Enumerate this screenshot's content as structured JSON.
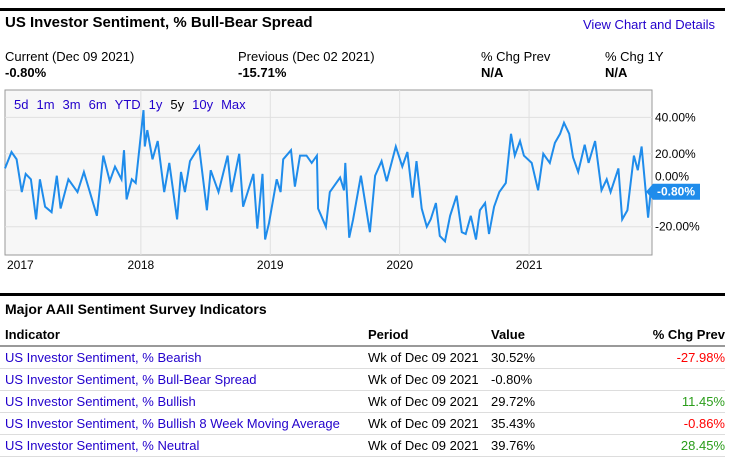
{
  "header": {
    "title": "US Investor Sentiment, % Bull-Bear Spread",
    "details_link": "View Chart and Details"
  },
  "stats": [
    {
      "label": "Current (Dec 09 2021)",
      "value": "-0.80%"
    },
    {
      "label": "Previous (Dec 02 2021)",
      "value": "-15.71%"
    },
    {
      "label": "% Chg Prev",
      "value": "N/A"
    },
    {
      "label": "% Chg 1Y",
      "value": "N/A"
    }
  ],
  "ranges": {
    "items": [
      "5d",
      "1m",
      "3m",
      "6m",
      "YTD",
      "1y",
      "5y",
      "10y",
      "Max"
    ],
    "selected": "5y"
  },
  "chart_data": {
    "type": "line",
    "xlabel": "",
    "ylabel": "",
    "x_ticks": [
      2017,
      2018,
      2019,
      2020,
      2021
    ],
    "x_tick_labels": [
      "2017",
      "2018",
      "2019",
      "2020",
      "2021"
    ],
    "y_ticks": [
      40,
      20,
      0,
      -20
    ],
    "y_tick_labels": [
      "40.00%",
      "20.00%",
      "0.00%",
      "-20.00%"
    ],
    "xlim": [
      2016.95,
      2021.95
    ],
    "ylim": [
      -35.5,
      55
    ],
    "grid": true,
    "line_color": "#1f8ceb",
    "last_value_label": "-0.80%",
    "x": [
      2016.95,
      2017.0,
      2017.04,
      2017.08,
      2017.11,
      2017.15,
      2017.19,
      2017.22,
      2017.26,
      2017.31,
      2017.35,
      2017.38,
      2017.44,
      2017.51,
      2017.56,
      2017.66,
      2017.71,
      2017.76,
      2017.8,
      2017.85,
      2017.87,
      2017.89,
      2017.93,
      2017.96,
      2018.02,
      2018.03,
      2018.05,
      2018.09,
      2018.13,
      2018.18,
      2018.22,
      2018.28,
      2018.31,
      2018.34,
      2018.38,
      2018.45,
      2018.51,
      2018.54,
      2018.6,
      2018.67,
      2018.7,
      2018.76,
      2018.79,
      2018.87,
      2018.9,
      2018.94,
      2018.96,
      2018.99,
      2019.05,
      2019.08,
      2019.1,
      2019.16,
      2019.19,
      2019.23,
      2019.28,
      2019.32,
      2019.36,
      2019.37,
      2019.43,
      2019.46,
      2019.54,
      2019.57,
      2019.58,
      2019.61,
      2019.64,
      2019.7,
      2019.77,
      2019.81,
      2019.86,
      2019.9,
      2019.97,
      2020.02,
      2020.06,
      2020.1,
      2020.13,
      2020.17,
      2020.21,
      2020.24,
      2020.28,
      2020.31,
      2020.35,
      2020.39,
      2020.44,
      2020.48,
      2020.51,
      2020.55,
      2020.59,
      2020.62,
      2020.66,
      2020.69,
      2020.73,
      2020.77,
      2020.82,
      2020.86,
      2020.89,
      2020.93,
      2020.96,
      2021.02,
      2021.07,
      2021.11,
      2021.16,
      2021.2,
      2021.24,
      2021.27,
      2021.31,
      2021.34,
      2021.38,
      2021.43,
      2021.46,
      2021.51,
      2021.56,
      2021.6,
      2021.63,
      2021.69,
      2021.72,
      2021.76,
      2021.81,
      2021.84,
      2021.87,
      2021.92,
      2021.94
    ],
    "y": [
      12,
      21,
      17,
      -1,
      9,
      6,
      -16,
      6,
      -9,
      -12,
      8,
      -10,
      6,
      -1,
      10,
      -14,
      19,
      5,
      13,
      6,
      22,
      -5,
      6,
      4,
      44,
      24,
      33,
      17,
      27,
      -1,
      15,
      -16,
      10,
      -1,
      16,
      24,
      -11,
      11,
      -1,
      19,
      -1,
      20,
      -9,
      9,
      -21,
      9,
      -27,
      -18,
      6,
      -1,
      17,
      22,
      2,
      19,
      19,
      15,
      19,
      -10,
      -20,
      -1,
      7,
      0,
      15,
      -26,
      -16,
      8,
      -23,
      8,
      16,
      5,
      24,
      13,
      21,
      -4,
      16,
      -10,
      -20,
      -16,
      -7,
      -25,
      -28,
      -14,
      -3,
      -23,
      -24,
      -14,
      -27,
      -11,
      -7,
      -24,
      -9,
      -1,
      4,
      31,
      19,
      27,
      19,
      15,
      0,
      20,
      15,
      26,
      31,
      37,
      31,
      18,
      10,
      25,
      15,
      27,
      0,
      6,
      -1,
      12,
      -16,
      -11,
      19,
      11,
      24,
      -15,
      -0.8
    ]
  },
  "table": {
    "title": "Major AAII Sentiment Survey Indicators",
    "columns": [
      "Indicator",
      "Period",
      "Value",
      "% Chg Prev"
    ],
    "rows": [
      {
        "indicator": "US Investor Sentiment, % Bearish",
        "period": "Wk of Dec 09 2021",
        "value": "30.52%",
        "chg": "-27.98%",
        "dir": "neg"
      },
      {
        "indicator": "US Investor Sentiment, % Bull-Bear Spread",
        "period": "Wk of Dec 09 2021",
        "value": "-0.80%",
        "chg": "",
        "dir": ""
      },
      {
        "indicator": "US Investor Sentiment, % Bullish",
        "period": "Wk of Dec 09 2021",
        "value": "29.72%",
        "chg": "11.45%",
        "dir": "pos"
      },
      {
        "indicator": "US Investor Sentiment, % Bullish 8 Week Moving Average",
        "period": "Wk of Dec 09 2021",
        "value": "35.43%",
        "chg": "-0.86%",
        "dir": "neg"
      },
      {
        "indicator": "US Investor Sentiment, % Neutral",
        "period": "Wk of Dec 09 2021",
        "value": "39.76%",
        "chg": "28.45%",
        "dir": "pos"
      }
    ]
  }
}
